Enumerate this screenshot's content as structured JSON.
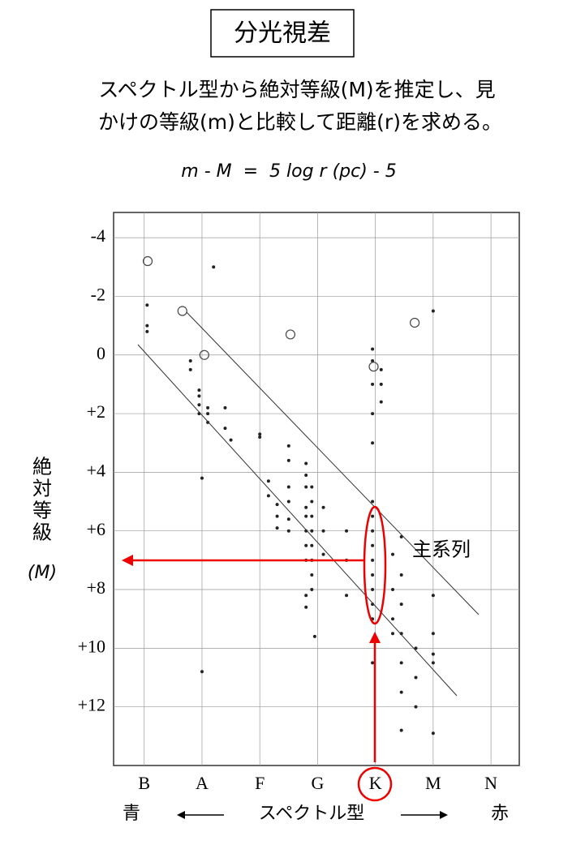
{
  "chart_data": {
    "type": "scatter",
    "title": "分光視差",
    "description": [
      "スペクトル型から絶対等級(M)を推定し、見",
      "かけの等級(m)と比較して距離(r)を求める。"
    ],
    "formula": "m - M  =  5 log r (pc) - 5",
    "ylabel": "絶対等級",
    "ylabel_symbol": "(M)",
    "xlabel": "スペクトル型",
    "x_left_label": "青",
    "x_right_label": "赤",
    "annotation": "主系列",
    "highlight": "K",
    "categories": [
      "B",
      "A",
      "F",
      "G",
      "K",
      "M",
      "N"
    ],
    "xlim": [
      -0.53,
      6.49
    ],
    "ylim": [
      14.0,
      -4.86
    ],
    "yticks": [
      -4,
      -2,
      0,
      {
        "value": 2,
        "label": "+2"
      },
      {
        "value": 4,
        "label": "+4"
      },
      {
        "value": 6,
        "label": "+6"
      },
      {
        "value": 8,
        "label": "+8"
      },
      {
        "value": 10,
        "label": "+10"
      },
      {
        "value": 12,
        "label": "+12"
      }
    ],
    "grid": true,
    "series": [
      {
        "color": "#222",
        "hollow": false,
        "x": [
          0.05,
          0.05,
          0.05,
          0.8,
          0.8,
          0.95,
          0.95,
          0.95,
          0.95,
          1.1,
          1.1,
          1.1,
          1.4,
          1.4,
          1.5,
          2.0,
          2.0,
          2.15,
          2.15,
          2.3,
          2.3,
          2.3,
          2.5,
          2.5,
          2.5,
          2.5,
          2.5,
          2.5,
          2.8,
          2.8,
          2.8,
          2.8,
          2.8,
          2.8,
          2.8,
          2.8,
          2.8,
          2.8,
          2.9,
          2.9,
          2.9,
          2.9,
          2.9,
          2.9,
          2.9,
          2.9,
          3.1,
          3.1,
          3.1,
          3.5,
          3.5,
          3.5,
          3.95,
          3.95,
          3.95,
          3.95,
          3.95,
          3.95,
          3.95,
          3.95,
          3.95,
          3.95,
          3.95,
          3.95,
          3.95,
          3.95,
          3.95,
          4.1,
          4.1,
          4.1,
          4.3,
          4.3,
          4.3,
          4.3,
          4.45,
          4.45,
          4.45,
          4.45,
          4.45,
          4.45,
          4.45,
          4.7,
          4.7,
          4.7,
          5.0,
          5.0,
          5.0,
          5.0,
          5.0,
          5.0,
          1.0,
          1.0,
          1.2,
          2.95
        ],
        "values": [
          -1.7,
          -1.0,
          -0.8,
          0.2,
          0.5,
          1.2,
          1.4,
          1.7,
          2.0,
          1.8,
          2.0,
          2.3,
          1.8,
          2.5,
          2.9,
          2.7,
          2.8,
          4.3,
          4.8,
          5.1,
          5.5,
          5.9,
          3.1,
          3.6,
          4.5,
          5.0,
          5.6,
          6.0,
          3.7,
          4.1,
          4.5,
          5.2,
          5.5,
          6.0,
          6.5,
          7.0,
          8.2,
          8.6,
          4.5,
          5.0,
          5.5,
          6.0,
          6.5,
          7.0,
          7.5,
          8.0,
          5.2,
          6.0,
          6.8,
          6.0,
          7.0,
          8.2,
          -0.2,
          0.2,
          1.0,
          2.0,
          3.0,
          5.0,
          5.5,
          6.0,
          6.5,
          7.0,
          7.5,
          8.0,
          8.5,
          9.0,
          10.5,
          0.5,
          1.0,
          1.6,
          6.8,
          8.0,
          9.0,
          9.5,
          6.2,
          7.5,
          8.5,
          9.5,
          10.5,
          11.5,
          12.8,
          10.0,
          11.0,
          12.0,
          8.2,
          9.5,
          10.2,
          10.5,
          12.9,
          -1.5,
          10.8,
          4.2,
          -3.0,
          9.6
        ]
      },
      {
        "color": "#444",
        "hollow": true,
        "x": [
          0.06,
          0.66,
          1.04,
          2.53,
          3.97,
          4.68
        ],
        "values": [
          -3.2,
          -1.5,
          0.0,
          -0.7,
          0.4,
          -1.1
        ]
      }
    ]
  }
}
